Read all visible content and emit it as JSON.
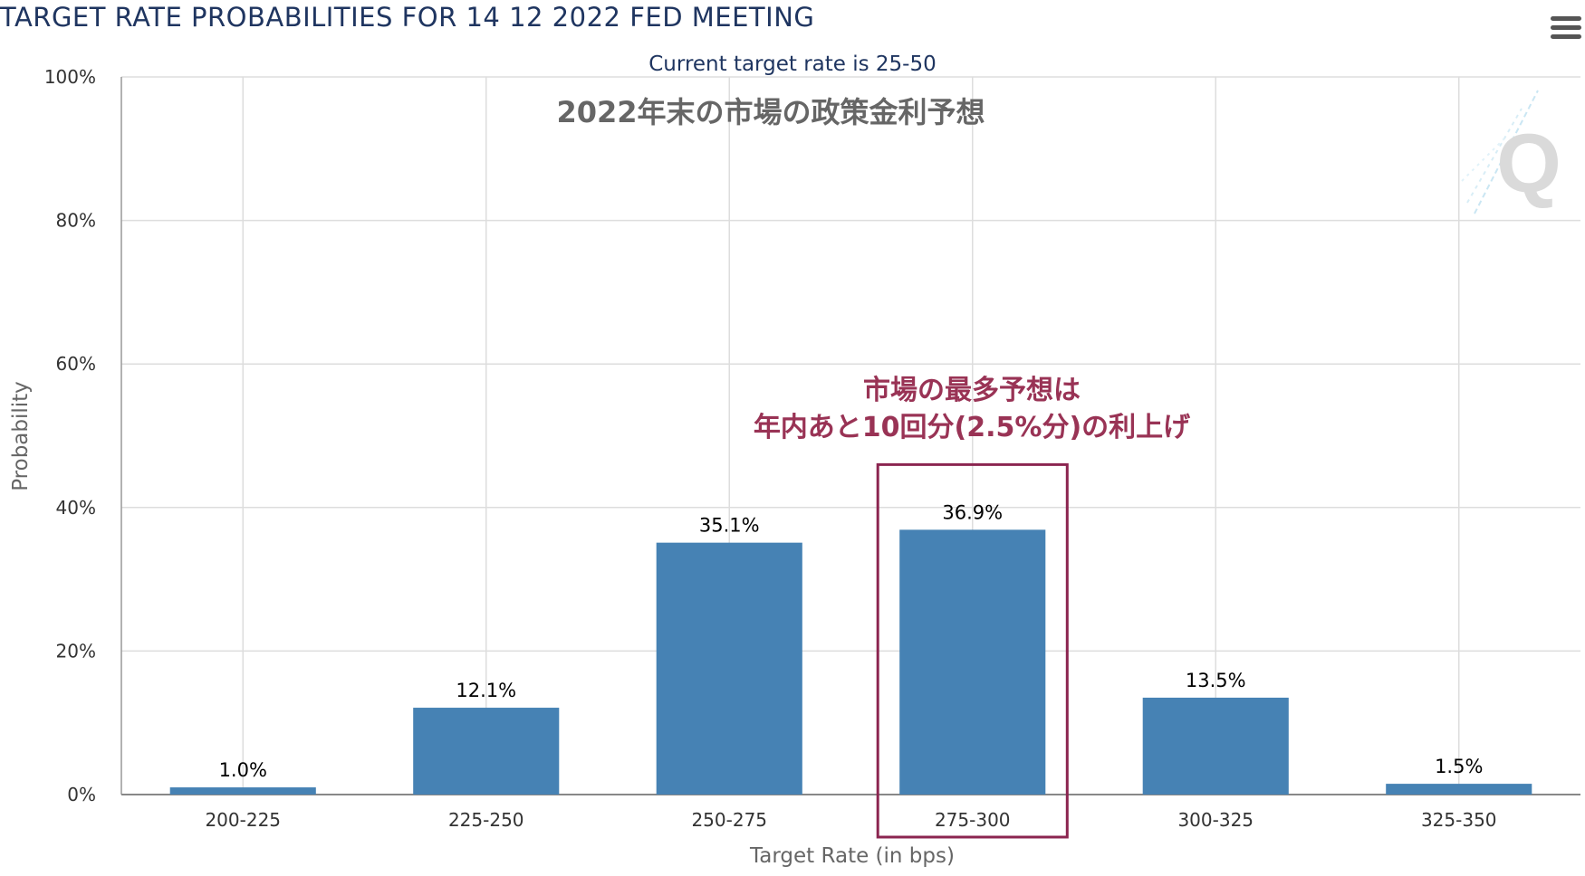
{
  "title": "TARGET RATE PROBABILITIES FOR 14 12 2022 FED MEETING",
  "icons": {
    "menu": "hamburger-menu-icon",
    "logo": "cme-fedwatch-q-logo"
  },
  "colors": {
    "bar": "#4682b4",
    "title": "#1f3560",
    "annotation": "#993355",
    "highlight_box": "#8b2550",
    "grid": "#dddddd"
  },
  "annotations": {
    "note_top": "2022年末の市場の政策金利予想",
    "note_line1": "市場の最多予想は",
    "note_line2": "年内あと10回分(2.5%分)の利上げ",
    "highlight_category": "275-300"
  },
  "chart_data": {
    "type": "bar",
    "title": "TARGET RATE PROBABILITIES FOR 14 12 2022 FED MEETING",
    "subtitle": "Current target rate is 25-50",
    "xlabel": "Target Rate (in bps)",
    "ylabel": "Probability",
    "categories": [
      "200-225",
      "225-250",
      "250-275",
      "275-300",
      "300-325",
      "325-350"
    ],
    "values": [
      1.0,
      12.1,
      35.1,
      36.9,
      13.5,
      1.5
    ],
    "value_labels": [
      "1.0%",
      "12.1%",
      "35.1%",
      "36.9%",
      "13.5%",
      "1.5%"
    ],
    "ylim": [
      0,
      100
    ],
    "yticks": [
      0,
      20,
      40,
      60,
      80,
      100
    ],
    "ytick_labels": [
      "0%",
      "20%",
      "40%",
      "60%",
      "80%",
      "100%"
    ],
    "grid": true,
    "legend": "none"
  }
}
